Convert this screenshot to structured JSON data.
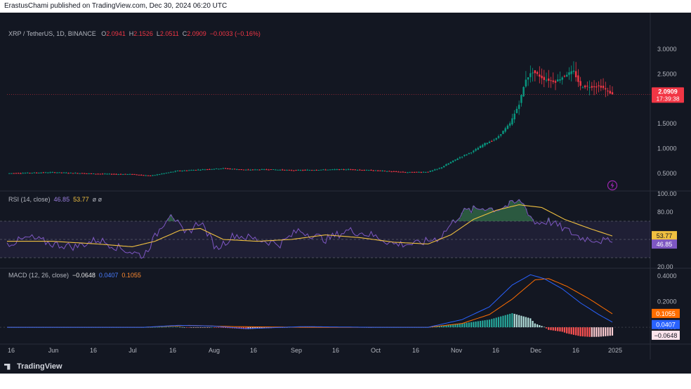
{
  "header": {
    "text": "ErastusChami published on TradingView.com, Dec 30, 2024 06:20 UTC"
  },
  "footer": {
    "brand": "TradingView"
  },
  "price_panel": {
    "symbol": "XRP / TetherUS, 1D, BINANCE",
    "ohlc": {
      "o_label": "O",
      "o": "2.0941",
      "h_label": "H",
      "h": "2.1526",
      "l_label": "L",
      "l": "2.0511",
      "c_label": "C",
      "c": "2.0909",
      "change": "−0.0033 (−0.16%)"
    },
    "last_price": "2.0909",
    "countdown": "17:39:38",
    "axis_labels": [
      "3.0000",
      "2.5000",
      "2.0000",
      "1.5000",
      "1.0000",
      "0.5000"
    ],
    "up_color": "#089981",
    "down_color": "#f23645",
    "icon": "lightning-icon"
  },
  "rsi_panel": {
    "legend_name": "RSI (14, close)",
    "rsi_value": "46.85",
    "ma_value": "53.77",
    "extra": "ø ø",
    "axis_labels": [
      "100.00",
      "80.00",
      "20.00"
    ],
    "rsi_color": "#7e57c2",
    "ma_color": "#f0c040"
  },
  "macd_panel": {
    "legend_name": "MACD (12, 26, close)",
    "hist_value": "−0.0648",
    "macd_value": "0.0407",
    "signal_value": "0.1055",
    "axis_labels": [
      "0.4000",
      "0.2000",
      "0.0000"
    ],
    "macd_color": "#2962ff",
    "signal_color": "#ff6d00"
  },
  "time_axis": [
    "16",
    "Jun",
    "16",
    "Jul",
    "16",
    "Aug",
    "16",
    "Sep",
    "16",
    "Oct",
    "16",
    "Nov",
    "16",
    "Dec",
    "16",
    "2025"
  ],
  "chart_data": {
    "type": "candlestick",
    "symbol": "XRP / TetherUS",
    "timeframe": "1D",
    "price_axis": {
      "ylim": [
        0.2,
        3.2
      ],
      "ticks": [
        0.5,
        1.0,
        1.5,
        2.0,
        2.5,
        3.0
      ]
    },
    "price_keypoints": [
      [
        0,
        0.5
      ],
      [
        20,
        0.52
      ],
      [
        40,
        0.49
      ],
      [
        55,
        0.48
      ],
      [
        63,
        0.45
      ],
      [
        75,
        0.55
      ],
      [
        95,
        0.6
      ],
      [
        105,
        0.57
      ],
      [
        115,
        0.58
      ],
      [
        125,
        0.56
      ],
      [
        135,
        0.57
      ],
      [
        150,
        0.58
      ],
      [
        165,
        0.55
      ],
      [
        175,
        0.52
      ],
      [
        185,
        0.53
      ],
      [
        190,
        0.6
      ],
      [
        198,
        0.8
      ],
      [
        205,
        0.95
      ],
      [
        210,
        1.1
      ],
      [
        215,
        1.2
      ],
      [
        221,
        1.5
      ],
      [
        225,
        1.9
      ],
      [
        228,
        2.4
      ],
      [
        231,
        2.55
      ],
      [
        236,
        2.4
      ],
      [
        241,
        2.35
      ],
      [
        246,
        2.5
      ],
      [
        249,
        2.55
      ],
      [
        252,
        2.25
      ],
      [
        256,
        2.25
      ],
      [
        261,
        2.25
      ],
      [
        264,
        2.15
      ],
      [
        266,
        2.0909
      ]
    ],
    "last_close": 2.0909,
    "rsi": {
      "ylim": [
        20,
        100
      ],
      "bands": [
        70,
        30
      ],
      "rsi_keypoints": [
        [
          0,
          45
        ],
        [
          10,
          52
        ],
        [
          20,
          45
        ],
        [
          30,
          42
        ],
        [
          40,
          50
        ],
        [
          50,
          40
        ],
        [
          60,
          32
        ],
        [
          68,
          65
        ],
        [
          72,
          80
        ],
        [
          78,
          55
        ],
        [
          85,
          70
        ],
        [
          92,
          40
        ],
        [
          100,
          55
        ],
        [
          110,
          50
        ],
        [
          120,
          45
        ],
        [
          128,
          60
        ],
        [
          140,
          50
        ],
        [
          150,
          60
        ],
        [
          160,
          55
        ],
        [
          170,
          45
        ],
        [
          180,
          45
        ],
        [
          190,
          52
        ],
        [
          200,
          80
        ],
        [
          210,
          85
        ],
        [
          215,
          83
        ],
        [
          221,
          88
        ],
        [
          226,
          92
        ],
        [
          232,
          68
        ],
        [
          238,
          70
        ],
        [
          246,
          60
        ],
        [
          252,
          52
        ],
        [
          258,
          50
        ],
        [
          266,
          46.85
        ]
      ],
      "ma_keypoints": [
        [
          0,
          48
        ],
        [
          20,
          48
        ],
        [
          40,
          45
        ],
        [
          55,
          42
        ],
        [
          65,
          48
        ],
        [
          76,
          60
        ],
        [
          85,
          62
        ],
        [
          95,
          50
        ],
        [
          110,
          48
        ],
        [
          125,
          50
        ],
        [
          140,
          55
        ],
        [
          155,
          52
        ],
        [
          170,
          47
        ],
        [
          185,
          45
        ],
        [
          195,
          55
        ],
        [
          205,
          72
        ],
        [
          215,
          82
        ],
        [
          225,
          88
        ],
        [
          235,
          85
        ],
        [
          245,
          72
        ],
        [
          256,
          62
        ],
        [
          266,
          53.77
        ]
      ],
      "last_rsi": 46.85,
      "last_ma": 53.77
    },
    "macd": {
      "ylim": [
        -0.12,
        0.45
      ],
      "macd_keypoints": [
        [
          0,
          0.0
        ],
        [
          60,
          0.0
        ],
        [
          75,
          0.015
        ],
        [
          90,
          0.01
        ],
        [
          105,
          -0.01
        ],
        [
          130,
          0.005
        ],
        [
          160,
          0.0
        ],
        [
          185,
          0.0
        ],
        [
          200,
          0.06
        ],
        [
          212,
          0.16
        ],
        [
          222,
          0.33
        ],
        [
          230,
          0.41
        ],
        [
          236,
          0.38
        ],
        [
          244,
          0.3
        ],
        [
          252,
          0.19
        ],
        [
          260,
          0.1
        ],
        [
          266,
          0.0407
        ]
      ],
      "signal_keypoints": [
        [
          0,
          0.0
        ],
        [
          60,
          0.0
        ],
        [
          80,
          0.015
        ],
        [
          100,
          0.005
        ],
        [
          130,
          0.0
        ],
        [
          185,
          0.0
        ],
        [
          200,
          0.03
        ],
        [
          212,
          0.1
        ],
        [
          222,
          0.22
        ],
        [
          232,
          0.37
        ],
        [
          238,
          0.38
        ],
        [
          246,
          0.32
        ],
        [
          256,
          0.22
        ],
        [
          266,
          0.1055
        ]
      ],
      "last_macd": 0.0407,
      "last_signal": 0.1055,
      "last_hist": -0.0648
    }
  }
}
